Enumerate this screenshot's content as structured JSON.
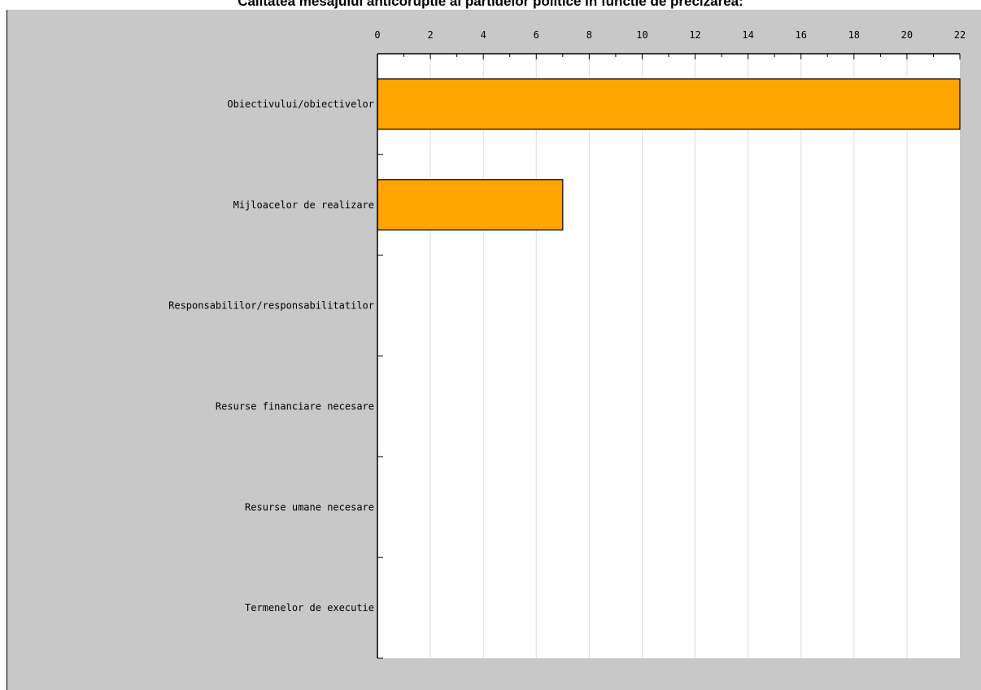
{
  "chart_data": {
    "type": "bar",
    "orientation": "horizontal",
    "title": "Calitatea mesajului anticoruptie al partidelor politice  in functie de precizarea:",
    "categories": [
      "Obiectivului/obiectivelor",
      "Mijloacelor de realizare",
      "Responsabililor/responsabilitatilor",
      "Resurse financiare necesare",
      "Resurse umane necesare",
      "Termenelor de executie"
    ],
    "values": [
      22,
      7,
      0,
      0,
      0,
      0
    ],
    "xlim": [
      0,
      22
    ],
    "xticks": [
      "0",
      "2",
      "4",
      "6",
      "8",
      "10",
      "12",
      "14",
      "16",
      "18",
      "20",
      "22"
    ],
    "x_axis_position": "top",
    "grid": "vertical",
    "legend": "none",
    "bar_color": "#FFA500",
    "plot_background": "#FFFFFF",
    "frame_background": "#C8C8C8"
  }
}
